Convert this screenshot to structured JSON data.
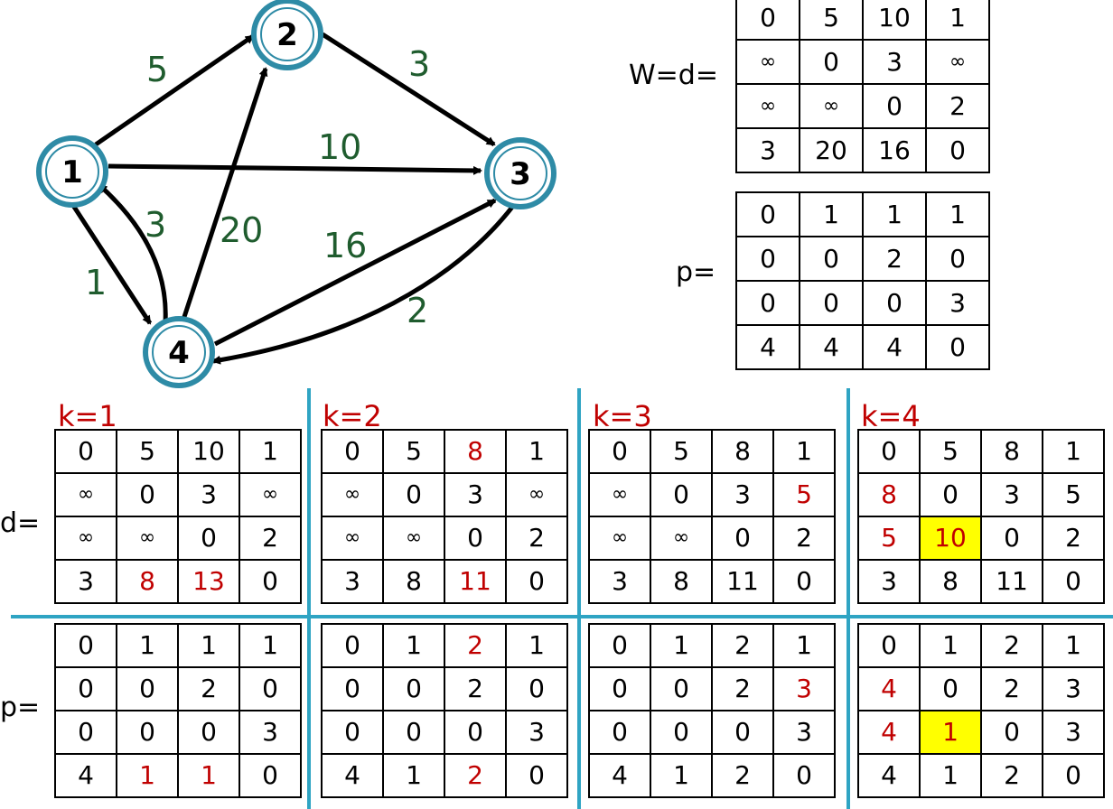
{
  "graph": {
    "nodes": [
      {
        "id": "1",
        "label": "1"
      },
      {
        "id": "2",
        "label": "2"
      },
      {
        "id": "3",
        "label": "3"
      },
      {
        "id": "4",
        "label": "4"
      }
    ],
    "edges": [
      {
        "from": "1",
        "to": "2",
        "weight": "5"
      },
      {
        "from": "2",
        "to": "3",
        "weight": "3"
      },
      {
        "from": "1",
        "to": "3",
        "weight": "10"
      },
      {
        "from": "1",
        "to": "4",
        "weight": "1"
      },
      {
        "from": "4",
        "to": "1",
        "weight": "3"
      },
      {
        "from": "4",
        "to": "2",
        "weight": "20"
      },
      {
        "from": "4",
        "to": "3",
        "weight": "16"
      },
      {
        "from": "3",
        "to": "4",
        "weight": "2"
      }
    ]
  },
  "labels": {
    "w_d": "W=d=",
    "p_top": "p=",
    "d": "d=",
    "p": "p=",
    "k1": "k=1",
    "k2": "k=2",
    "k3": "k=3",
    "k4": "k=4"
  },
  "matrices": {
    "w": [
      [
        "0",
        "5",
        "10",
        "1"
      ],
      [
        "∞",
        "0",
        "3",
        "∞"
      ],
      [
        "∞",
        "∞",
        "0",
        "2"
      ],
      [
        "3",
        "20",
        "16",
        "0"
      ]
    ],
    "p0": [
      [
        "0",
        "1",
        "1",
        "1"
      ],
      [
        "0",
        "0",
        "2",
        "0"
      ],
      [
        "0",
        "0",
        "0",
        "3"
      ],
      [
        "4",
        "4",
        "4",
        "0"
      ]
    ],
    "d1": [
      [
        "0",
        "5",
        "10",
        "1"
      ],
      [
        "∞",
        "0",
        "3",
        "∞"
      ],
      [
        "∞",
        "∞",
        "0",
        "2"
      ],
      [
        "3",
        "8",
        "13",
        "0"
      ]
    ],
    "d2": [
      [
        "0",
        "5",
        "8",
        "1"
      ],
      [
        "∞",
        "0",
        "3",
        "∞"
      ],
      [
        "∞",
        "∞",
        "0",
        "2"
      ],
      [
        "3",
        "8",
        "11",
        "0"
      ]
    ],
    "d3": [
      [
        "0",
        "5",
        "8",
        "1"
      ],
      [
        "∞",
        "0",
        "3",
        "5"
      ],
      [
        "∞",
        "∞",
        "0",
        "2"
      ],
      [
        "3",
        "8",
        "11",
        "0"
      ]
    ],
    "d4": [
      [
        "0",
        "5",
        "8",
        "1"
      ],
      [
        "8",
        "0",
        "3",
        "5"
      ],
      [
        "5",
        "10",
        "0",
        "2"
      ],
      [
        "3",
        "8",
        "11",
        "0"
      ]
    ],
    "p1": [
      [
        "0",
        "1",
        "1",
        "1"
      ],
      [
        "0",
        "0",
        "2",
        "0"
      ],
      [
        "0",
        "0",
        "0",
        "3"
      ],
      [
        "4",
        "1",
        "1",
        "0"
      ]
    ],
    "p2": [
      [
        "0",
        "1",
        "2",
        "1"
      ],
      [
        "0",
        "0",
        "2",
        "0"
      ],
      [
        "0",
        "0",
        "0",
        "3"
      ],
      [
        "4",
        "1",
        "2",
        "0"
      ]
    ],
    "p3": [
      [
        "0",
        "1",
        "2",
        "1"
      ],
      [
        "0",
        "0",
        "2",
        "3"
      ],
      [
        "0",
        "0",
        "0",
        "3"
      ],
      [
        "4",
        "1",
        "2",
        "0"
      ]
    ],
    "p4": [
      [
        "0",
        "1",
        "2",
        "1"
      ],
      [
        "4",
        "0",
        "2",
        "3"
      ],
      [
        "4",
        "1",
        "0",
        "3"
      ],
      [
        "4",
        "1",
        "2",
        "0"
      ]
    ]
  },
  "changes": {
    "d1": [
      "3-1",
      "3-2"
    ],
    "d2": [
      "0-2",
      "3-2"
    ],
    "d3": [
      "1-3"
    ],
    "d4": [
      "1-0",
      "2-0",
      "2-1"
    ],
    "p1": [
      "3-1",
      "3-2"
    ],
    "p2": [
      "0-2",
      "3-2"
    ],
    "p3": [
      "1-3"
    ],
    "p4": [
      "1-0",
      "2-0",
      "2-1"
    ]
  },
  "highlights": {
    "d4": [
      "2-1"
    ],
    "p4": [
      "2-1"
    ]
  },
  "colors": {
    "node_ring": "#2e8ba6",
    "edge": "#000000",
    "weight": "#1f5c2e",
    "changed": "#c00000",
    "highlight": "#ffff00",
    "divider": "#2fa4c3"
  }
}
